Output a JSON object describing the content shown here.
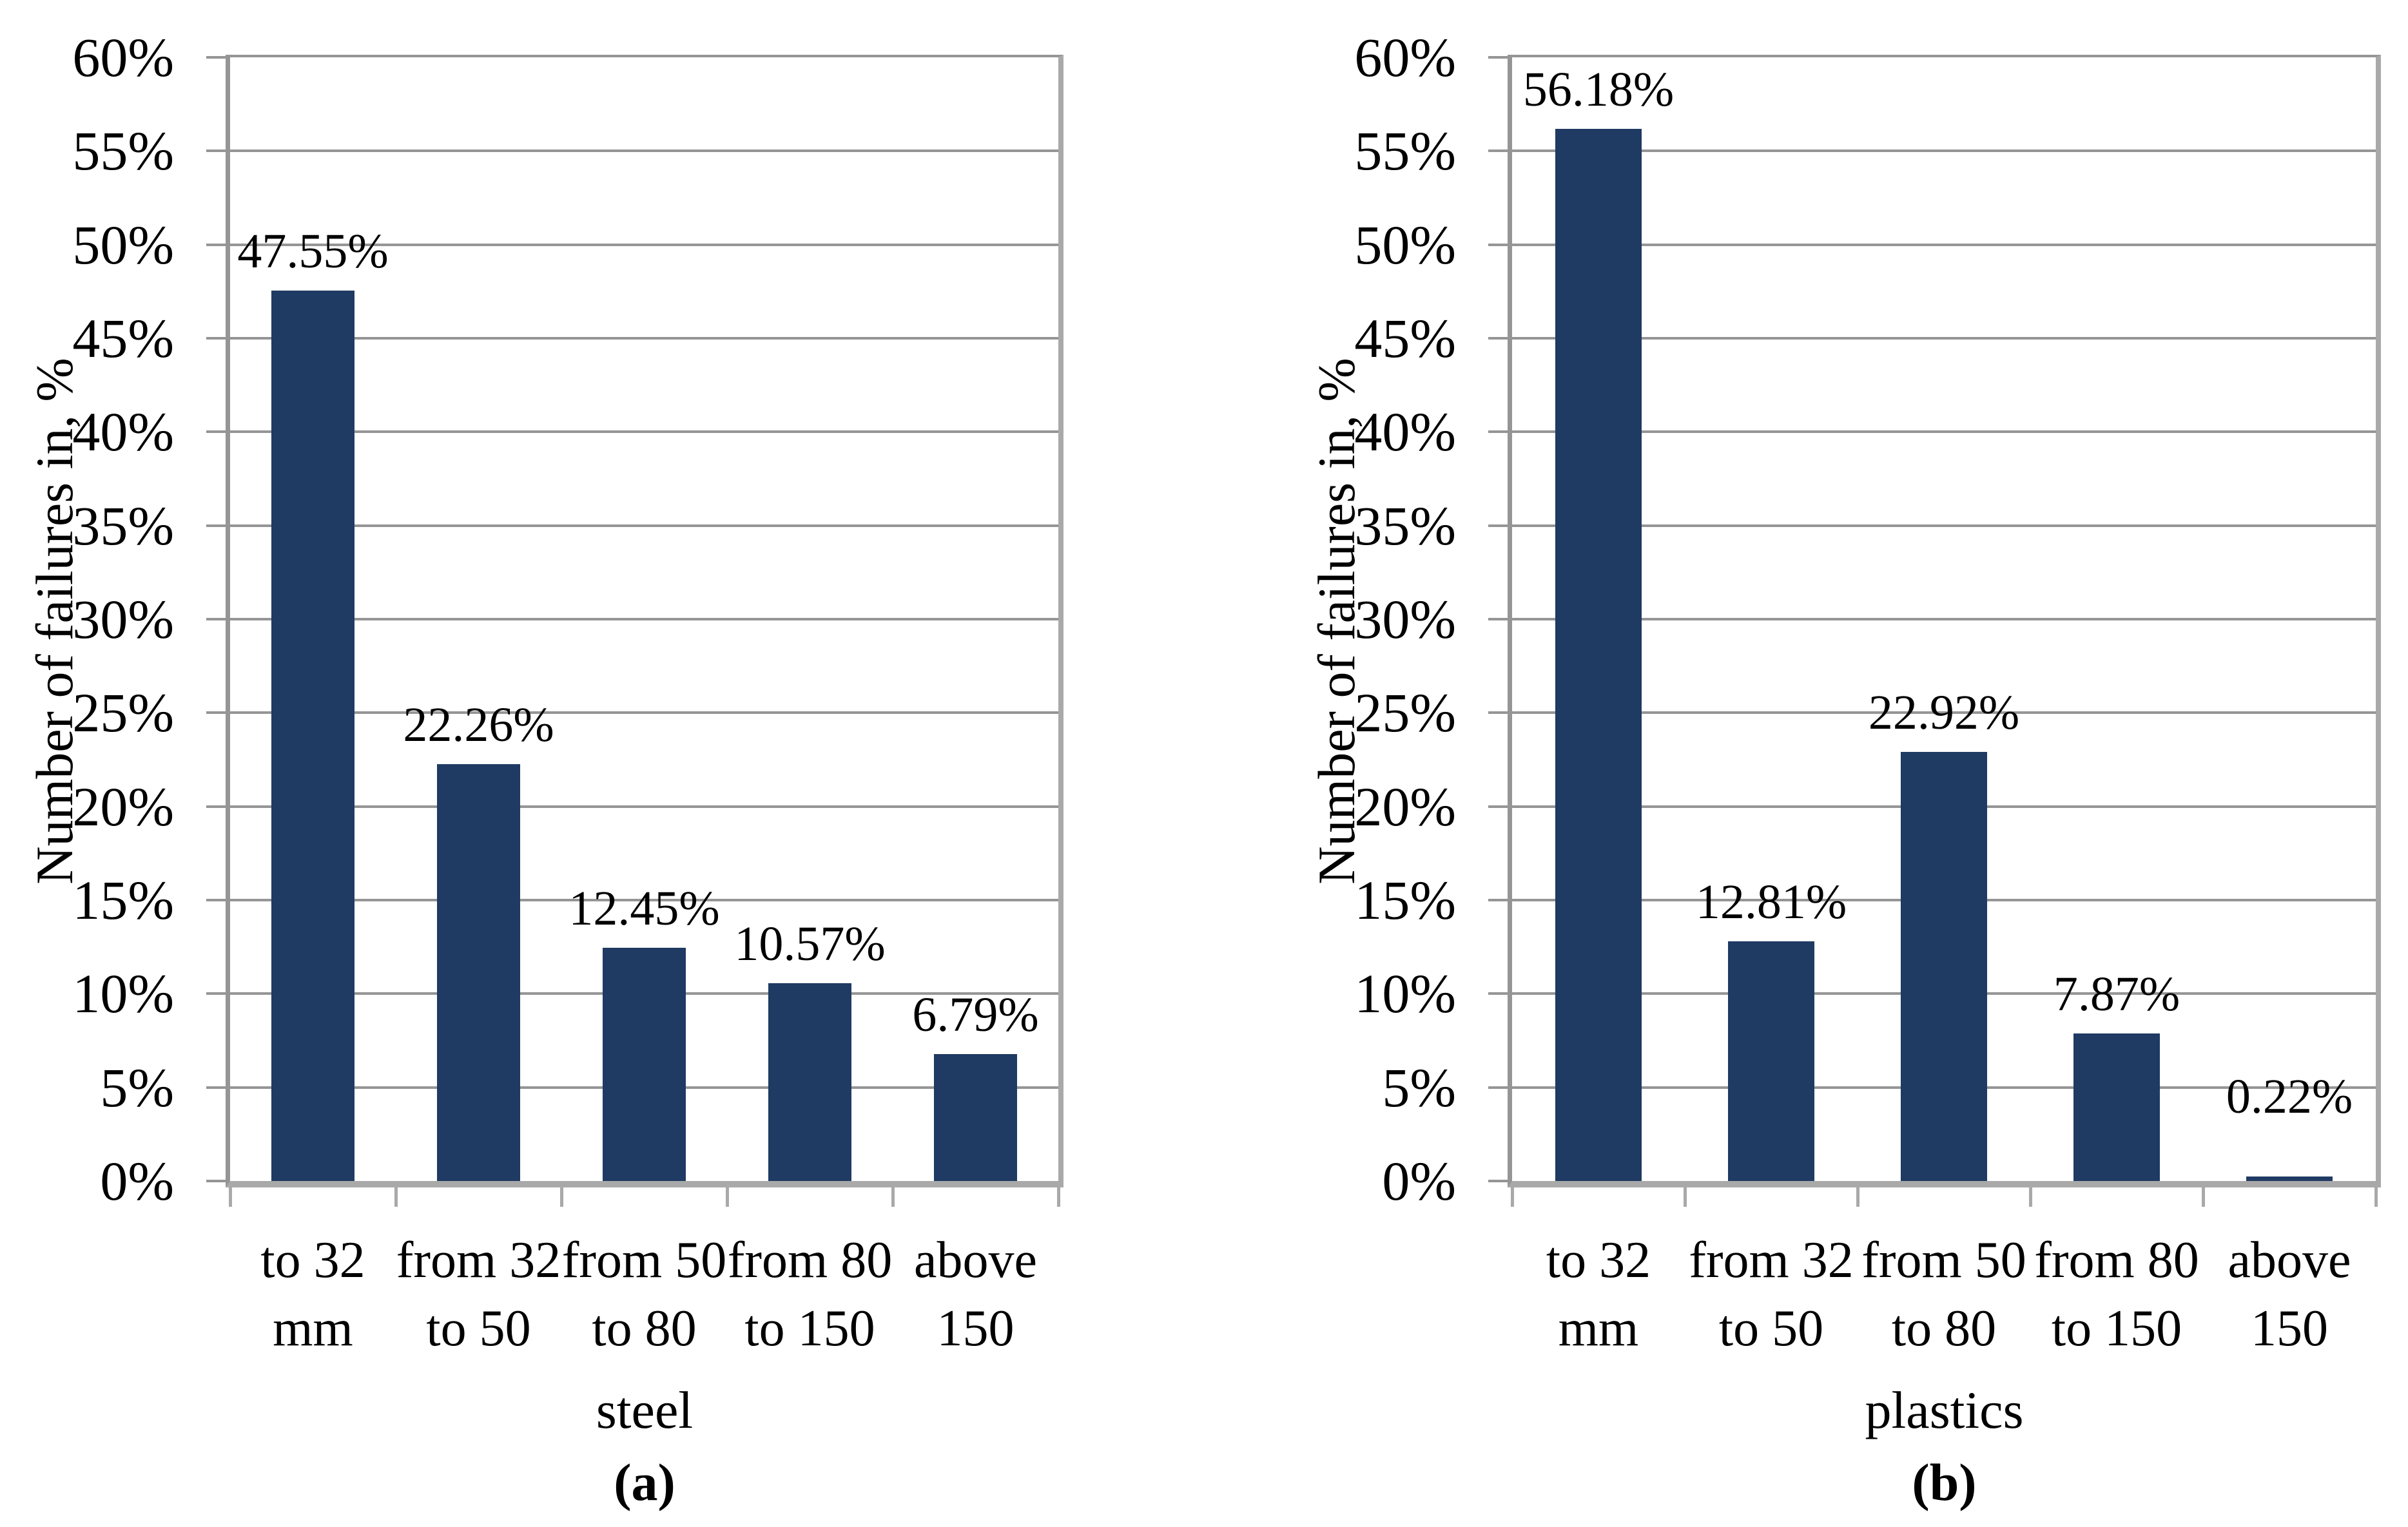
{
  "style": {
    "bar_color": "#1F3A63",
    "gridline_color": "#959595",
    "axis_color": "#A9A9A9",
    "text_color": "#000000",
    "background_color": "#FFFFFF"
  },
  "yaxis": {
    "title": "Number of failures in, %",
    "min": 0,
    "max": 60,
    "step": 5,
    "tick_labels": [
      "0%",
      "5%",
      "10%",
      "15%",
      "20%",
      "25%",
      "30%",
      "35%",
      "40%",
      "45%",
      "50%",
      "55%",
      "60%"
    ]
  },
  "chart_data": [
    {
      "type": "bar",
      "panel_label": "(a)",
      "series_label": "steel",
      "ylabel": "Number of failures in, %",
      "ylim": [
        0,
        60
      ],
      "ytick_step": 5,
      "grid": true,
      "legend": "none",
      "bar_color": "#1F3A63",
      "categories": [
        "to 32 mm",
        "from 32 to 50",
        "from 50 to 80",
        "from 80 to 150",
        "above 150"
      ],
      "categories_lines": [
        [
          "to 32",
          "mm"
        ],
        [
          "from 32",
          "to 50"
        ],
        [
          "from 50",
          "to 80"
        ],
        [
          "from 80",
          "to 150"
        ],
        [
          "above",
          "150"
        ]
      ],
      "values": [
        47.55,
        22.26,
        12.45,
        10.57,
        6.79
      ],
      "value_labels": [
        "47.55%",
        "22.26%",
        "12.45%",
        "10.57%",
        "6.79%"
      ]
    },
    {
      "type": "bar",
      "panel_label": "(b)",
      "series_label": "plastics",
      "ylabel": "Number of failures in, %",
      "ylim": [
        0,
        60
      ],
      "ytick_step": 5,
      "grid": true,
      "legend": "none",
      "bar_color": "#1F3A63",
      "categories": [
        "to 32 mm",
        "from 32 to 50",
        "from 50 to 80",
        "from 80 to 150",
        "above 150"
      ],
      "categories_lines": [
        [
          "to 32",
          "mm"
        ],
        [
          "from 32",
          "to 50"
        ],
        [
          "from 50",
          "to 80"
        ],
        [
          "from 80",
          "to 150"
        ],
        [
          "above",
          "150"
        ]
      ],
      "values": [
        56.18,
        12.81,
        22.92,
        7.87,
        0.22
      ],
      "value_labels": [
        "56.18%",
        "12.81%",
        "22.92%",
        "7.87%",
        "0.22%"
      ]
    }
  ]
}
